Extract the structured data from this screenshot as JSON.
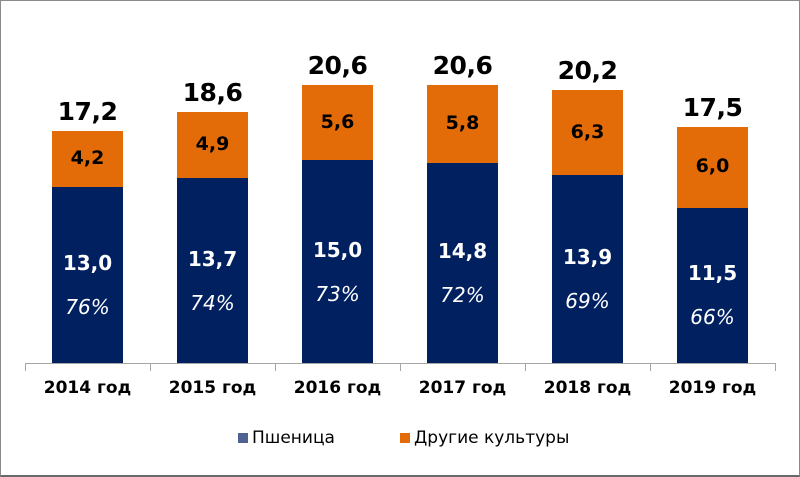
{
  "chart_data": {
    "type": "bar",
    "stacked": true,
    "title": "",
    "xlabel": "",
    "ylabel": "",
    "ylim": [
      0,
      26
    ],
    "grid": false,
    "legend_position": "bottom",
    "categories": [
      "2014 год",
      "2015 год",
      "2016 год",
      "2017 год",
      "2018 год",
      "2019 год"
    ],
    "series": [
      {
        "name": "Пшеница",
        "color": "#002060",
        "values": [
          13.0,
          13.7,
          15.0,
          14.8,
          13.9,
          11.5
        ],
        "labels": [
          "13,0",
          "13,7",
          "15,0",
          "14,8",
          "13,9",
          "11,5"
        ]
      },
      {
        "name": "Другие культуры",
        "color": "#E36C09",
        "values": [
          4.2,
          4.9,
          5.6,
          5.8,
          6.3,
          6.0
        ],
        "labels": [
          "4,2",
          "4,9",
          "5,6",
          "5,8",
          "6,3",
          "6,0"
        ]
      }
    ],
    "totals": [
      17.2,
      18.6,
      20.6,
      20.6,
      20.2,
      17.5
    ],
    "total_labels": [
      "17,2",
      "18,6",
      "20,6",
      "20,6",
      "20,2",
      "17,5"
    ],
    "wheat_share_labels": [
      "76%",
      "74%",
      "73%",
      "72%",
      "69%",
      "66%"
    ]
  },
  "legend": {
    "items": [
      {
        "label": "Пшеница",
        "color": "#4F6292"
      },
      {
        "label": "Другие культуры",
        "color": "#E36C09"
      }
    ]
  }
}
